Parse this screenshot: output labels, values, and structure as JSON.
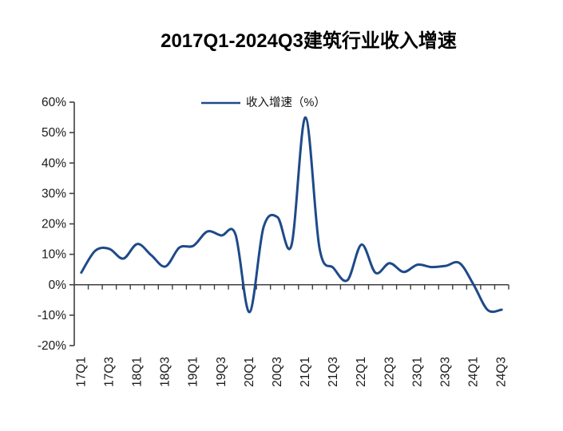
{
  "chart_data": {
    "type": "line",
    "title": "2017Q1-2024Q3建筑行业收入增速",
    "x": [
      "17Q1",
      "17Q2",
      "17Q3",
      "17Q4",
      "18Q1",
      "18Q2",
      "18Q3",
      "18Q4",
      "19Q1",
      "19Q2",
      "19Q3",
      "19Q4",
      "20Q1",
      "20Q2",
      "20Q3",
      "20Q4",
      "21Q1",
      "21Q2",
      "21Q3",
      "21Q4",
      "22Q1",
      "22Q2",
      "22Q3",
      "22Q4",
      "23Q1",
      "23Q2",
      "23Q3",
      "23Q4",
      "24Q1",
      "24Q2",
      "24Q3"
    ],
    "series": [
      {
        "name": "收入增速（%）",
        "values": [
          4.0,
          11.2,
          11.8,
          8.6,
          13.4,
          9.7,
          6.0,
          12.2,
          12.8,
          17.5,
          16.2,
          16.6,
          -9.0,
          18.8,
          22.2,
          13.0,
          55.0,
          12.0,
          5.5,
          1.5,
          13.2,
          3.9,
          7.1,
          4.2,
          6.6,
          5.8,
          6.2,
          7.1,
          0.0,
          -8.3,
          -8.2
        ]
      }
    ],
    "xlabel": "",
    "ylabel": "",
    "ylim": [
      -20,
      60
    ],
    "ytick_step": 10,
    "ytick_labels": [
      "60%",
      "50%",
      "40%",
      "30%",
      "20%",
      "10%",
      "0%",
      "-10%",
      "-20%"
    ],
    "xtick_labels_shown": [
      "17Q1",
      "17Q3",
      "18Q1",
      "18Q3",
      "19Q1",
      "19Q3",
      "20Q1",
      "20Q3",
      "21Q1",
      "21Q3",
      "22Q1",
      "22Q3",
      "23Q1",
      "23Q3",
      "24Q1",
      "24Q3"
    ],
    "x_label_rotation_deg": -90,
    "grid": false,
    "smoothed": true,
    "legend_position": "top-center",
    "colors": {
      "line": "#1e4a89",
      "axis": "#3f3f3f",
      "text": "#1a1a1a"
    }
  }
}
